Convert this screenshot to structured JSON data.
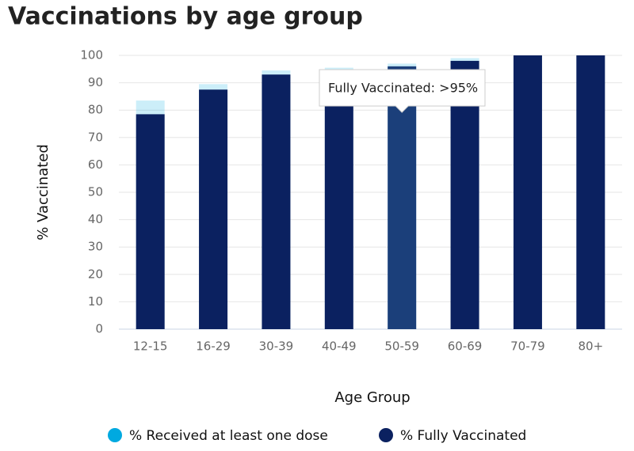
{
  "chart_data": {
    "type": "bar",
    "title": "Vaccinations by age group",
    "x_label": "Age Group",
    "y_label": "% Vaccinated",
    "categories": [
      "12-15",
      "16-29",
      "30-39",
      "40-49",
      "50-59",
      "60-69",
      "70-79",
      "80+"
    ],
    "series": [
      {
        "name": "% Received at least one dose",
        "color": "#00a9e0",
        "values": [
          83.5,
          89.5,
          94.5,
          95.5,
          97,
          99,
          100,
          100
        ]
      },
      {
        "name": "% Fully Vaccinated",
        "color": "#0b2160",
        "values": [
          78.5,
          87.5,
          93,
          94.5,
          96,
          98,
          100,
          100
        ]
      }
    ],
    "ylim": [
      0,
      100
    ],
    "yticks": [
      0,
      10,
      20,
      30,
      40,
      50,
      60,
      70,
      80,
      90,
      100
    ],
    "grid": true,
    "tooltip": "Fully Vaccinated: >95%"
  }
}
